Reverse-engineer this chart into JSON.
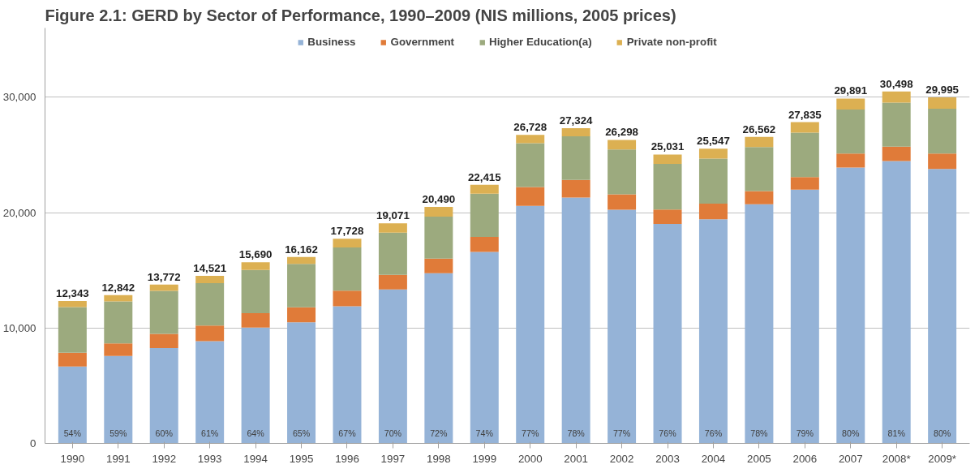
{
  "chart_data": {
    "type": "bar",
    "stacked": true,
    "title": "Figure 2.1: GERD by Sector of Performance, 1990–2009 (NIS millions, 2005 prices)",
    "categories": [
      "1990",
      "1991",
      "1992",
      "1993",
      "1994",
      "1995",
      "1996",
      "1997",
      "1998",
      "1999",
      "2000",
      "2001",
      "2002",
      "2003",
      "2004",
      "2005",
      "2006",
      "2007",
      "2008*",
      "2009*"
    ],
    "series": [
      {
        "name": "Business",
        "color": "#95b3d7",
        "values": [
          6660,
          7580,
          8260,
          8860,
          10040,
          10500,
          11880,
          13350,
          14750,
          16590,
          20580,
          21310,
          20250,
          19020,
          19420,
          20720,
          21990,
          23910,
          24460,
          23780
        ]
      },
      {
        "name": "Government",
        "color": "#e07b39",
        "values": [
          1200,
          1090,
          1230,
          1350,
          1240,
          1290,
          1360,
          1250,
          1270,
          1300,
          1630,
          1520,
          1340,
          1240,
          1350,
          1140,
          1090,
          1210,
          1250,
          1340
        ]
      },
      {
        "name": "Higher Education(a)",
        "color": "#9caa7e",
        "values": [
          3960,
          3640,
          3720,
          3670,
          3750,
          3770,
          3740,
          3660,
          3630,
          3740,
          3800,
          3780,
          3880,
          3960,
          3910,
          3830,
          3850,
          3820,
          3830,
          3880
        ]
      },
      {
        "name": "Private non-profit",
        "color": "#dcb052",
        "values": [
          523,
          532,
          562,
          641,
          660,
          602,
          748,
          811,
          840,
          785,
          718,
          714,
          828,
          811,
          867,
          872,
          905,
          951,
          958,
          995
        ]
      }
    ],
    "annotations": [
      "54%",
      "59%",
      "60%",
      "61%",
      "64%",
      "65%",
      "67%",
      "70%",
      "72%",
      "74%",
      "77%",
      "78%",
      "77%",
      "76%",
      "76%",
      "78%",
      "79%",
      "80%",
      "81%",
      "80%"
    ],
    "totals": [
      "12,343",
      "12,842",
      "13,772",
      "14,521",
      "15,690",
      "16,162",
      "17,728",
      "19,071",
      "20,490",
      "22,415",
      "26,728",
      "27,324",
      "26,298",
      "25,031",
      "25,547",
      "26,562",
      "27,835",
      "29,891",
      "30,498",
      "29,995"
    ],
    "ylim": [
      0,
      36000
    ],
    "yticks": [
      0,
      {
        "value": 10000,
        "label": "10,000"
      },
      {
        "value": 20000,
        "label": "20,000"
      },
      {
        "value": 30000,
        "label": "30,000"
      }
    ],
    "grid": "y",
    "legend": "top"
  }
}
